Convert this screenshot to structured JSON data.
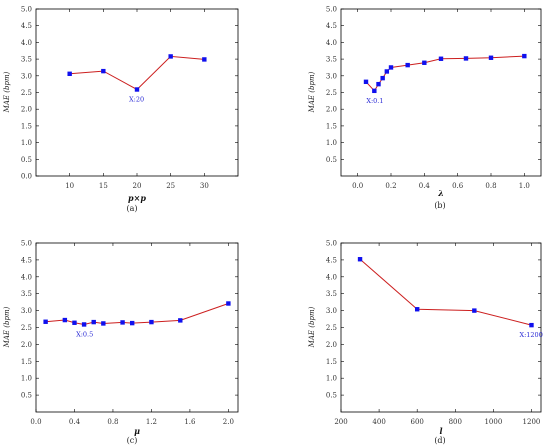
{
  "figure": {
    "colors": {
      "line": "#cc1f1f",
      "marker": "#1010ee",
      "axis": "#000000",
      "annotation": "#2d2dd6"
    }
  },
  "chart_data": [
    {
      "type": "line",
      "xlabel": "p×p",
      "ylabel": "MAE (bpm)",
      "caption": "(a)",
      "xlim": [
        5,
        35
      ],
      "ylim": [
        0.0,
        5.0
      ],
      "xticks": [
        10,
        15,
        20,
        25,
        30
      ],
      "xticklabels": [
        "10",
        "15",
        "20",
        "25",
        "30"
      ],
      "yticks": [
        0.0,
        0.5,
        1.0,
        1.5,
        2.0,
        2.5,
        3.0,
        3.5,
        4.0,
        4.5,
        5.0
      ],
      "yticklabels": [
        "0.0",
        "0.5",
        "1.0",
        "1.5",
        "2.0",
        "2.5",
        "3.0",
        "3.5",
        "4.0",
        "4.5",
        "5.0"
      ],
      "series": [
        {
          "x": [
            10,
            15,
            20,
            25,
            30
          ],
          "y": [
            3.06,
            3.14,
            2.59,
            3.58,
            3.49
          ]
        }
      ],
      "annotation": {
        "text": "X:20",
        "x": 20,
        "y": 2.59
      }
    },
    {
      "type": "line",
      "xlabel": "λ",
      "ylabel": "MAE (bpm)",
      "caption": "(b)",
      "xlim": [
        -0.1,
        1.1
      ],
      "ylim": [
        0.0,
        5.0
      ],
      "xticks": [
        0.0,
        0.2,
        0.4,
        0.6,
        0.8,
        1.0
      ],
      "xticklabels": [
        "0.0",
        "0.2",
        "0.4",
        "0.6",
        "0.8",
        "1.0"
      ],
      "yticks": [
        0.5,
        1.0,
        1.5,
        2.0,
        2.5,
        3.0,
        3.5,
        4.0,
        4.5,
        5.0
      ],
      "yticklabels": [
        "0.5",
        "1.0",
        "1.5",
        "2.0",
        "2.5",
        "3.0",
        "3.5",
        "4.0",
        "4.5",
        "5.0"
      ],
      "series": [
        {
          "x": [
            0.05,
            0.1,
            0.125,
            0.15,
            0.175,
            0.2,
            0.3,
            0.4,
            0.5,
            0.65,
            0.8,
            1.0
          ],
          "y": [
            2.82,
            2.55,
            2.75,
            2.93,
            3.13,
            3.25,
            3.32,
            3.39,
            3.51,
            3.52,
            3.54,
            3.59
          ]
        }
      ],
      "annotation": {
        "text": "X:0.1",
        "x": 0.1,
        "y": 2.55
      }
    },
    {
      "type": "line",
      "xlabel": "μ",
      "ylabel": "MAE (bpm)",
      "caption": "(c)",
      "xlim": [
        0.0,
        2.1
      ],
      "ylim": [
        0.0,
        5.0
      ],
      "xticks": [
        0.0,
        0.4,
        0.8,
        1.2,
        1.6,
        2.0
      ],
      "xticklabels": [
        "0.0",
        "0.4",
        "0.8",
        "1.2",
        "1.6",
        "2.0"
      ],
      "yticks": [
        0.5,
        1.0,
        1.5,
        2.0,
        2.5,
        3.0,
        3.5,
        4.0,
        4.5,
        5.0
      ],
      "yticklabels": [
        "0.5",
        "1.0",
        "1.5",
        "2.0",
        "2.5",
        "3.0",
        "3.5",
        "4.0",
        "4.5",
        "5.0"
      ],
      "series": [
        {
          "x": [
            0.1,
            0.3,
            0.4,
            0.5,
            0.6,
            0.7,
            0.9,
            1.0,
            1.2,
            1.5,
            2.0
          ],
          "y": [
            2.67,
            2.72,
            2.64,
            2.59,
            2.66,
            2.62,
            2.65,
            2.63,
            2.66,
            2.71,
            3.21
          ]
        }
      ],
      "annotation": {
        "text": "X:0.5",
        "x": 0.5,
        "y": 2.59
      }
    },
    {
      "type": "line",
      "xlabel": "l",
      "ylabel": "MAE (bpm)",
      "caption": "(d)",
      "xlim": [
        200,
        1250
      ],
      "ylim": [
        0.0,
        5.0
      ],
      "xticks": [
        200,
        400,
        600,
        800,
        1000,
        1200
      ],
      "xticklabels": [
        "200",
        "400",
        "600",
        "800",
        "1000",
        "1200"
      ],
      "yticks": [
        0.5,
        1.0,
        1.5,
        2.0,
        2.5,
        3.0,
        3.5,
        4.0,
        4.5,
        5.0
      ],
      "yticklabels": [
        "0.5",
        "1.0",
        "1.5",
        "2.0",
        "2.5",
        "3.0",
        "3.5",
        "4.0",
        "4.5",
        "5.0"
      ],
      "series": [
        {
          "x": [
            300,
            600,
            900,
            1200
          ],
          "y": [
            4.52,
            3.04,
            3.0,
            2.57
          ]
        }
      ],
      "annotation": {
        "text": "X:1200",
        "x": 1200,
        "y": 2.57
      }
    }
  ]
}
